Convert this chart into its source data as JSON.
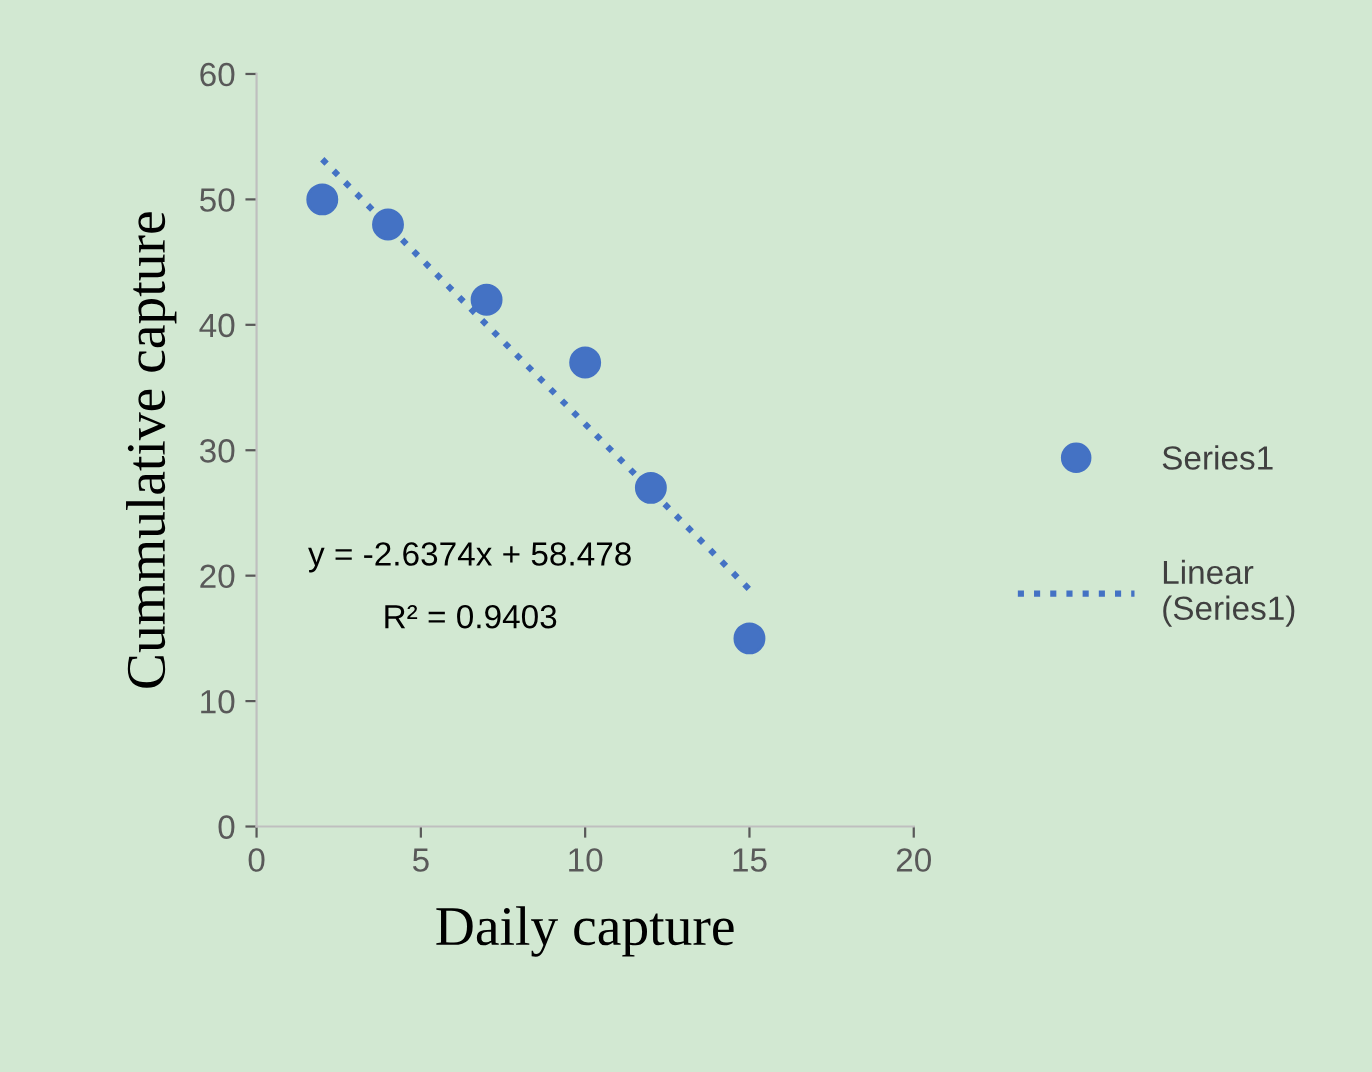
{
  "chart_data": {
    "type": "scatter",
    "xlabel": "Daily capture",
    "ylabel": "Cummulative capture",
    "xlim": [
      0,
      20
    ],
    "xticks": [
      0,
      5,
      10,
      15,
      20
    ],
    "ylim": [
      0,
      60
    ],
    "yticks": [
      0,
      10,
      20,
      30,
      40,
      50,
      60
    ],
    "grid": false,
    "legend": "right",
    "series": [
      {
        "name": "Series1",
        "marker": "circle",
        "color": "#4472c4",
        "x": [
          2,
          4,
          7,
          10,
          12,
          15
        ],
        "values": [
          50,
          48,
          42,
          37,
          27,
          15
        ]
      },
      {
        "name": "Linear (Series1)",
        "type": "line",
        "color": "#4472c4",
        "line_style": "dotted",
        "marker": "none",
        "x": [
          2,
          15
        ],
        "values": [
          53.2,
          18.9
        ]
      }
    ],
    "annotations": [
      "y = -2.6374x + 58.478",
      "R² = 0.9403"
    ]
  }
}
